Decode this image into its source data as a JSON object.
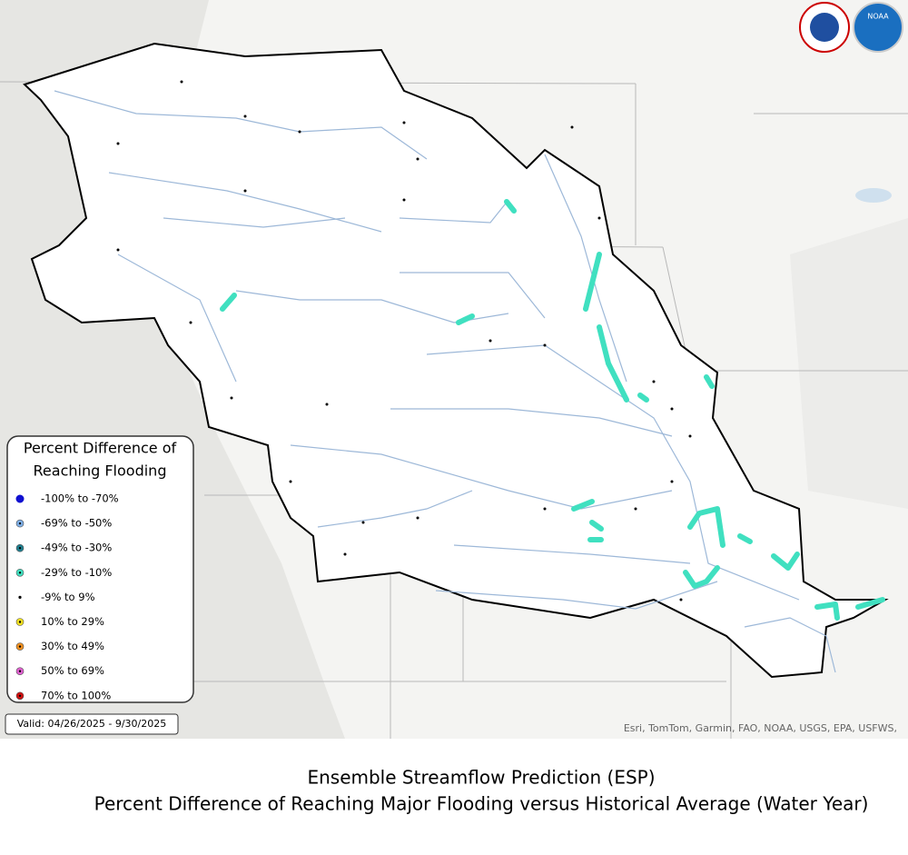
{
  "map": {
    "attribution": "Esri, TomTom, Garmin, FAO, NOAA, USGS, EPA, USFWS,",
    "logos": [
      "NATIONAL WEATHER SERVICE",
      "NOAA"
    ]
  },
  "legend": {
    "title": [
      "Percent Difference of",
      "Reaching Flooding"
    ],
    "items": [
      {
        "label": "-100% to -70%",
        "color": "#1010d0"
      },
      {
        "label": "-69% to -50%",
        "color": "#7fb0e8"
      },
      {
        "label": "-49% to -30%",
        "color": "#1f7f8f"
      },
      {
        "label": "-29% to -10%",
        "color": "#40e0c0"
      },
      {
        "label": "-9% to 9%",
        "color": "#000000"
      },
      {
        "label": "10% to 29%",
        "color": "#f0e020"
      },
      {
        "label": "30% to 49%",
        "color": "#f09020"
      },
      {
        "label": "50% to 69%",
        "color": "#e060d0"
      },
      {
        "label": "70% to 100%",
        "color": "#d01010"
      }
    ],
    "valid": "Valid: 04/26/2025 - 9/30/2025"
  },
  "caption": {
    "line1": "Ensemble Streamflow Prediction (ESP)",
    "line2": "Percent Difference of Reaching Major Flooding versus Historical Average (Water Year)"
  }
}
